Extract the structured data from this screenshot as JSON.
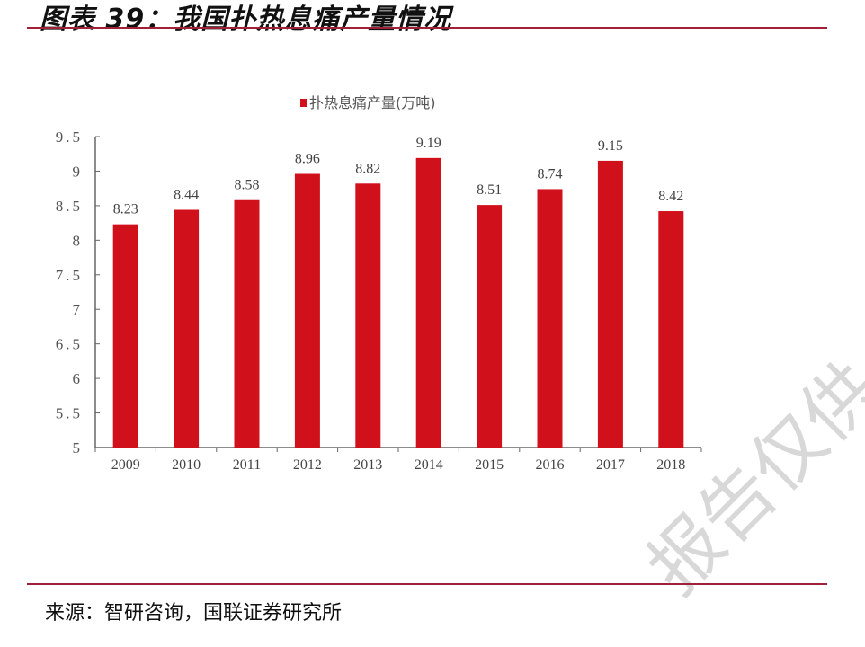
{
  "header": {
    "title": "图表 39：我国扑热息痛产量情况"
  },
  "footer": {
    "source": "来源：智研咨询，国联证券研究所"
  },
  "watermark": "报告仅供",
  "colors": {
    "bar": "#d0101b",
    "rule": "#a0203a",
    "axis": "#666666"
  },
  "chart_data": {
    "type": "bar",
    "categories": [
      "2009",
      "2010",
      "2011",
      "2012",
      "2013",
      "2014",
      "2015",
      "2016",
      "2017",
      "2018"
    ],
    "series": [
      {
        "name": "扑热息痛产量(万吨)",
        "values": [
          8.23,
          8.44,
          8.58,
          8.96,
          8.82,
          9.19,
          8.51,
          8.74,
          9.15,
          8.42
        ]
      }
    ],
    "data_labels": [
      "8.23",
      "8.44",
      "8.58",
      "8.96",
      "8.82",
      "9.19",
      "8.51",
      "8.74",
      "9.15",
      "8.42"
    ],
    "yticks": [
      "5",
      "5.5",
      "6",
      "6.5",
      "7",
      "7.5",
      "8",
      "8.5",
      "9",
      "9.5"
    ],
    "ylim": [
      5,
      9.5
    ],
    "grid": false,
    "legend": "top-center"
  }
}
